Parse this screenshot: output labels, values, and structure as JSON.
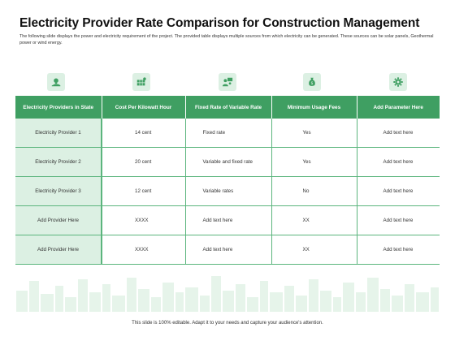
{
  "slide": {
    "title": "Electricity Provider Rate Comparison for Construction Management",
    "subtitle": "The following slide displays the power and electricity requirement of the project. The provided table displays multiple sources from which electricity can be generated. These sources can be solar panels, Geothermal power or wind energy.",
    "footer": "This slide is 100% editable. Adapt it to your needs and capture your audience's attention."
  },
  "colors": {
    "accent": "#3f9f62",
    "light_accent": "#dcf0e3",
    "skyline": "#e6f4ea"
  },
  "icons": [
    "hand-lightbulb-icon",
    "solar-panel-icon",
    "people-presentation-icon",
    "money-bag-icon",
    "gear-icon"
  ],
  "table": {
    "headers": [
      "Electricity Providers in State",
      "Cost Per Kilowatt Hour",
      "Fixed Rate of Variable Rate",
      "Minimum Usage Fees",
      "Add Parameter Here"
    ],
    "rows": [
      [
        "Electricity Provider 1",
        "14 cent",
        "Fixed rate",
        "Yes",
        "Add text here"
      ],
      [
        "Electricity Provider 2",
        "20 cent",
        "Variable and fixed rate",
        "Yes",
        "Add text here"
      ],
      [
        "Electricity Provider 3",
        "12 cent",
        "Variable rates",
        "No",
        "Add text here"
      ],
      [
        "Add Provider Here",
        "XXXX",
        "Add text here",
        "XX",
        "Add text here"
      ],
      [
        "Add Provider Here",
        "XXXX",
        "Add text here",
        "XX",
        "Add text here"
      ]
    ]
  }
}
